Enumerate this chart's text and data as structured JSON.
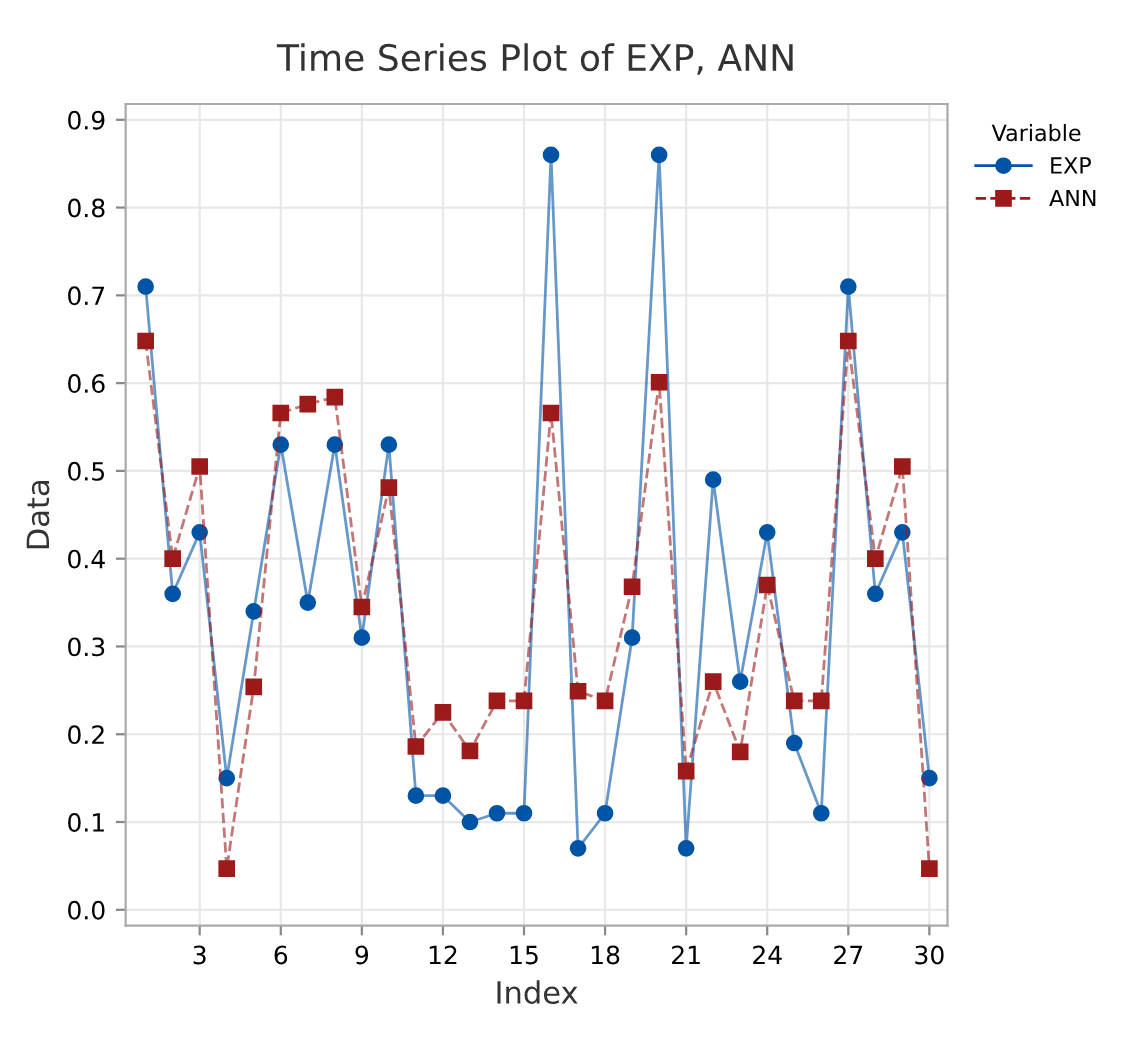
{
  "chart_data": {
    "type": "line",
    "title": "Time Series Plot of EXP, ANN",
    "xlabel": "Index",
    "ylabel": "Data",
    "legend_title": "Variable",
    "x": [
      1,
      2,
      3,
      4,
      5,
      6,
      7,
      8,
      9,
      10,
      11,
      12,
      13,
      14,
      15,
      16,
      17,
      18,
      19,
      20,
      21,
      22,
      23,
      24,
      25,
      26,
      27,
      28,
      29,
      30
    ],
    "series": [
      {
        "name": "EXP",
        "color": "#0054a6",
        "marker": "circle",
        "line_style": "solid",
        "values": [
          0.71,
          0.36,
          0.43,
          0.15,
          0.34,
          0.53,
          0.35,
          0.53,
          0.31,
          0.53,
          0.13,
          0.13,
          0.1,
          0.11,
          0.11,
          0.86,
          0.07,
          0.11,
          0.31,
          0.86,
          0.07,
          0.49,
          0.26,
          0.43,
          0.19,
          0.11,
          0.71,
          0.36,
          0.43,
          0.15
        ]
      },
      {
        "name": "ANN",
        "color": "#9b1b1b",
        "marker": "square",
        "line_style": "dashed",
        "values": [
          0.648,
          0.4,
          0.505,
          0.047,
          0.254,
          0.566,
          0.576,
          0.584,
          0.345,
          0.481,
          0.186,
          0.225,
          0.181,
          0.238,
          0.238,
          0.566,
          0.249,
          0.238,
          0.368,
          0.601,
          0.158,
          0.26,
          0.18,
          0.37,
          0.238,
          0.238,
          0.648,
          0.4,
          0.505,
          0.047
        ]
      }
    ],
    "xlim": [
      0.26,
      30.67
    ],
    "xticks": [
      3,
      6,
      9,
      12,
      15,
      18,
      21,
      24,
      27,
      30
    ],
    "ylim": [
      -0.018,
      0.918
    ],
    "yticks": [
      {
        "value": 0,
        "label": "0.0"
      },
      0.1,
      0.2,
      0.3,
      0.4,
      0.5,
      0.6,
      0.7,
      0.8,
      0.9
    ],
    "grid": true,
    "legend": "top right"
  }
}
